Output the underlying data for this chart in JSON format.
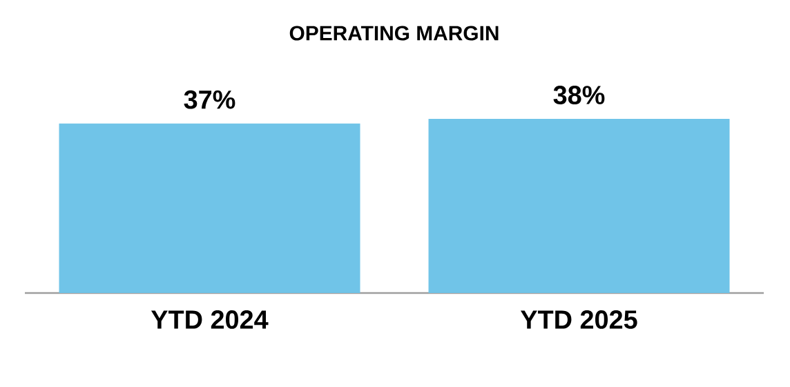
{
  "chart_data": {
    "type": "bar",
    "title": "OPERATING MARGIN",
    "categories": [
      "YTD 2024",
      "YTD 2025"
    ],
    "values": [
      37,
      38
    ],
    "value_labels": [
      "37%",
      "38%"
    ],
    "color": "#70c4e8",
    "tick_labels": "x"
  }
}
